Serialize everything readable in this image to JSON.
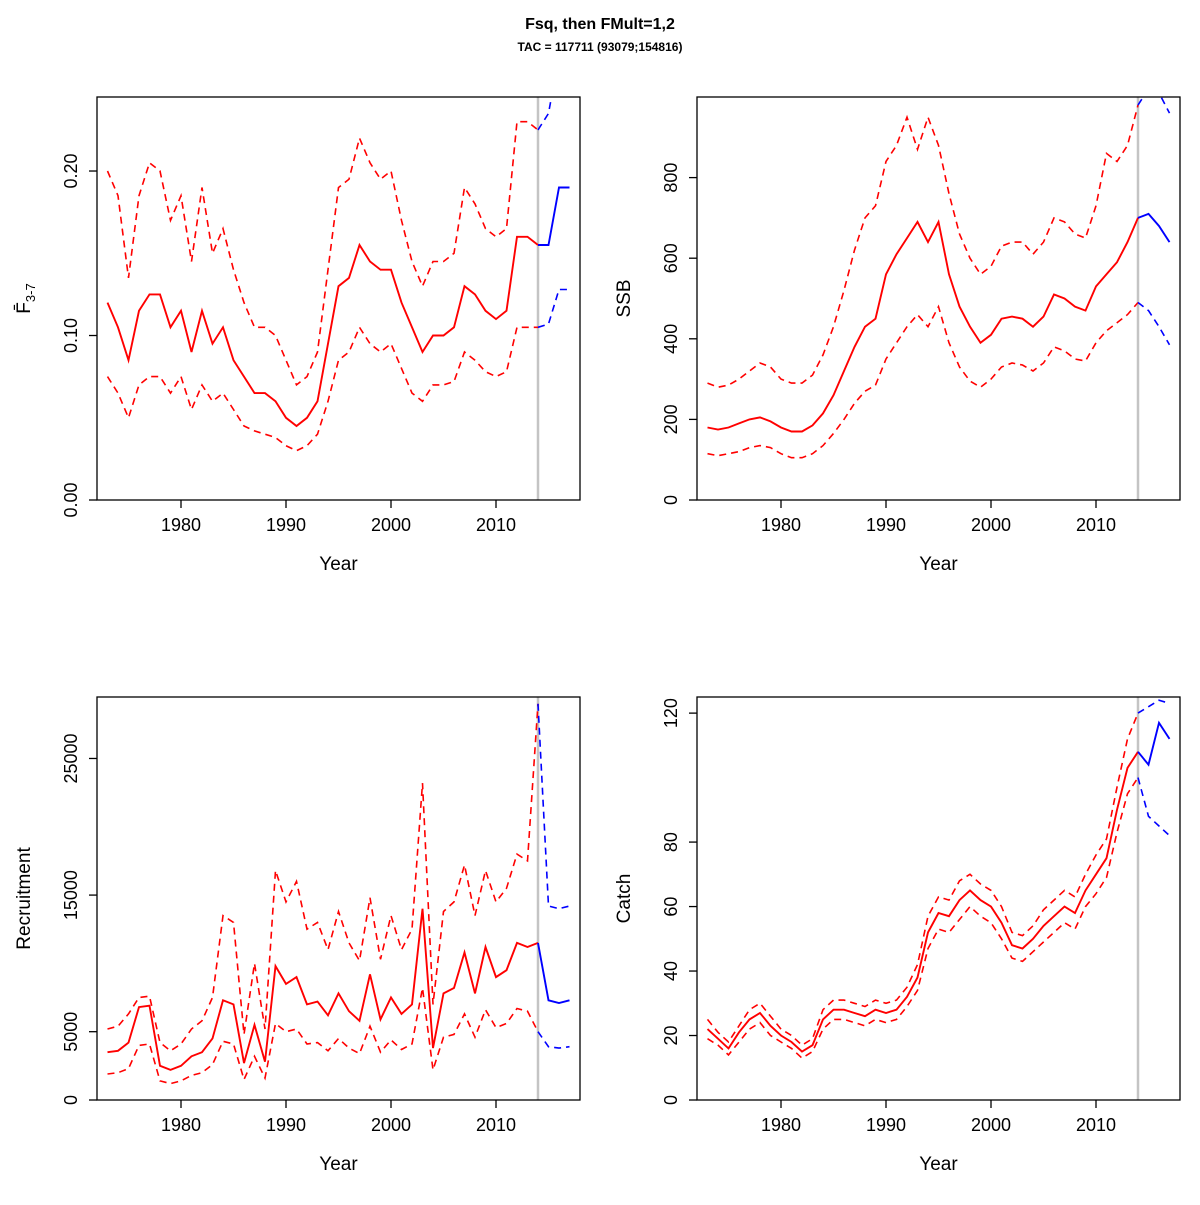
{
  "title": "Fsq, then FMult=1,2",
  "subtitle": "TAC = 117711 (93079;154816)",
  "colors": {
    "historical": "#ff0000",
    "forecast": "#0000ff",
    "forecast_divider": "#c4c4c4",
    "axis": "#000000"
  },
  "forecast_start_year": 2014,
  "years_hist": [
    1973,
    1974,
    1975,
    1976,
    1977,
    1978,
    1979,
    1980,
    1981,
    1982,
    1983,
    1984,
    1985,
    1986,
    1987,
    1988,
    1989,
    1990,
    1991,
    1992,
    1993,
    1994,
    1995,
    1996,
    1997,
    1998,
    1999,
    2000,
    2001,
    2002,
    2003,
    2004,
    2005,
    2006,
    2007,
    2008,
    2009,
    2010,
    2011,
    2012,
    2013,
    2014
  ],
  "years_forecast": [
    2014,
    2015,
    2016,
    2017
  ],
  "chart_data": [
    {
      "id": "fbar",
      "type": "line",
      "title": "",
      "xlabel": "Year",
      "ylabel": "F̄",
      "ylabel_sub": "3-7",
      "xlim": [
        1972,
        2018
      ],
      "ylim": [
        0,
        0.245
      ],
      "xticks": [
        1980,
        1990,
        2000,
        2010
      ],
      "yticks": [
        0,
        0.1,
        0.2
      ],
      "ytick_labels": [
        "0.00",
        "0.10",
        "0.20"
      ],
      "series": [
        {
          "name": "median-historical",
          "color": "red",
          "dash": false,
          "period": "hist",
          "y": [
            0.12,
            0.105,
            0.085,
            0.115,
            0.125,
            0.125,
            0.105,
            0.115,
            0.09,
            0.115,
            0.095,
            0.105,
            0.085,
            0.075,
            0.065,
            0.065,
            0.06,
            0.05,
            0.045,
            0.05,
            0.06,
            0.095,
            0.13,
            0.135,
            0.155,
            0.145,
            0.14,
            0.14,
            0.12,
            0.105,
            0.09,
            0.1,
            0.1,
            0.105,
            0.13,
            0.125,
            0.115,
            0.11,
            0.115,
            0.16,
            0.16,
            0.155
          ]
        },
        {
          "name": "upper-historical",
          "color": "red",
          "dash": true,
          "period": "hist",
          "y": [
            0.2,
            0.185,
            0.135,
            0.185,
            0.205,
            0.2,
            0.17,
            0.185,
            0.145,
            0.19,
            0.15,
            0.165,
            0.14,
            0.12,
            0.105,
            0.105,
            0.1,
            0.085,
            0.07,
            0.075,
            0.09,
            0.14,
            0.19,
            0.195,
            0.22,
            0.205,
            0.195,
            0.2,
            0.17,
            0.145,
            0.13,
            0.145,
            0.145,
            0.15,
            0.19,
            0.18,
            0.165,
            0.16,
            0.165,
            0.23,
            0.23,
            0.225
          ]
        },
        {
          "name": "lower-historical",
          "color": "red",
          "dash": true,
          "period": "hist",
          "y": [
            0.075,
            0.065,
            0.05,
            0.07,
            0.075,
            0.075,
            0.065,
            0.075,
            0.055,
            0.07,
            0.06,
            0.065,
            0.055,
            0.045,
            0.042,
            0.04,
            0.038,
            0.033,
            0.03,
            0.033,
            0.04,
            0.06,
            0.085,
            0.09,
            0.105,
            0.095,
            0.09,
            0.095,
            0.08,
            0.065,
            0.06,
            0.07,
            0.07,
            0.072,
            0.09,
            0.085,
            0.078,
            0.075,
            0.078,
            0.105,
            0.105,
            0.105
          ]
        },
        {
          "name": "median-forecast",
          "color": "blue",
          "dash": false,
          "period": "forecast",
          "y": [
            0.155,
            0.155,
            0.19,
            0.19
          ]
        },
        {
          "name": "upper-forecast",
          "color": "blue",
          "dash": true,
          "period": "forecast",
          "y": [
            0.225,
            0.235,
            0.27,
            0.27
          ]
        },
        {
          "name": "lower-forecast",
          "color": "blue",
          "dash": true,
          "period": "forecast",
          "y": [
            0.105,
            0.107,
            0.128,
            0.128
          ]
        }
      ]
    },
    {
      "id": "ssb",
      "type": "line",
      "title": "",
      "xlabel": "Year",
      "ylabel": "SSB",
      "xlim": [
        1972,
        2018
      ],
      "ylim": [
        0,
        1000
      ],
      "xticks": [
        1980,
        1990,
        2000,
        2010
      ],
      "yticks": [
        0,
        200,
        400,
        600,
        800
      ],
      "ytick_labels": [
        "0",
        "200",
        "400",
        "600",
        "800"
      ],
      "series": [
        {
          "name": "median-historical",
          "color": "red",
          "dash": false,
          "period": "hist",
          "y": [
            180,
            175,
            180,
            190,
            200,
            205,
            195,
            180,
            170,
            170,
            185,
            215,
            260,
            320,
            380,
            430,
            450,
            560,
            610,
            650,
            690,
            640,
            690,
            560,
            480,
            430,
            390,
            410,
            450,
            455,
            450,
            430,
            455,
            510,
            500,
            480,
            470,
            530,
            560,
            590,
            640,
            700
          ]
        },
        {
          "name": "upper-historical",
          "color": "red",
          "dash": true,
          "period": "hist",
          "y": [
            290,
            280,
            285,
            300,
            320,
            340,
            330,
            300,
            290,
            290,
            310,
            360,
            430,
            520,
            620,
            700,
            730,
            840,
            880,
            950,
            870,
            950,
            880,
            760,
            660,
            600,
            560,
            580,
            630,
            640,
            640,
            610,
            640,
            700,
            690,
            660,
            650,
            730,
            860,
            840,
            880,
            980
          ]
        },
        {
          "name": "lower-historical",
          "color": "red",
          "dash": true,
          "period": "hist",
          "y": [
            115,
            110,
            115,
            120,
            130,
            135,
            130,
            115,
            105,
            105,
            115,
            135,
            165,
            200,
            240,
            270,
            285,
            350,
            390,
            430,
            460,
            430,
            480,
            390,
            330,
            295,
            280,
            300,
            330,
            340,
            335,
            320,
            340,
            380,
            370,
            350,
            345,
            390,
            420,
            440,
            460,
            490
          ]
        },
        {
          "name": "median-forecast",
          "color": "blue",
          "dash": false,
          "period": "forecast",
          "y": [
            700,
            710,
            680,
            640
          ]
        },
        {
          "name": "upper-forecast",
          "color": "blue",
          "dash": true,
          "period": "forecast",
          "y": [
            980,
            1020,
            1010,
            960
          ]
        },
        {
          "name": "lower-forecast",
          "color": "blue",
          "dash": true,
          "period": "forecast",
          "y": [
            490,
            470,
            430,
            385
          ]
        }
      ]
    },
    {
      "id": "recruitment",
      "type": "line",
      "title": "",
      "xlabel": "Year",
      "ylabel": "Recruitment",
      "xlim": [
        1972,
        2018
      ],
      "ylim": [
        0,
        29500
      ],
      "xticks": [
        1980,
        1990,
        2000,
        2010
      ],
      "yticks": [
        0,
        5000,
        15000,
        25000
      ],
      "ytick_labels": [
        "0",
        "5000",
        "15000",
        "25000"
      ],
      "series": [
        {
          "name": "median-historical",
          "color": "red",
          "dash": false,
          "period": "hist",
          "y": [
            3500,
            3600,
            4200,
            6800,
            6900,
            2500,
            2200,
            2500,
            3200,
            3500,
            4500,
            7300,
            7000,
            2700,
            5500,
            2800,
            9800,
            8500,
            9000,
            7000,
            7200,
            6200,
            7800,
            6500,
            5800,
            9200,
            5900,
            7500,
            6300,
            7000,
            14000,
            3800,
            7800,
            8200,
            10800,
            7800,
            11200,
            9000,
            9500,
            11500,
            11200,
            11500
          ]
        },
        {
          "name": "upper-historical",
          "color": "red",
          "dash": true,
          "period": "hist",
          "y": [
            5200,
            5400,
            6300,
            7500,
            7600,
            4200,
            3600,
            4100,
            5200,
            5800,
            7500,
            13500,
            13000,
            4800,
            10000,
            5200,
            16800,
            14500,
            16000,
            12500,
            13000,
            11000,
            13800,
            11500,
            10200,
            14800,
            10300,
            13500,
            11000,
            12500,
            23200,
            7000,
            13800,
            14500,
            17200,
            13500,
            16800,
            14500,
            15500,
            18000,
            17500,
            29000
          ]
        },
        {
          "name": "lower-historical",
          "color": "red",
          "dash": true,
          "period": "hist",
          "y": [
            1900,
            2000,
            2300,
            4000,
            4100,
            1400,
            1200,
            1400,
            1800,
            2000,
            2600,
            4300,
            4100,
            1500,
            3200,
            1600,
            5600,
            5000,
            5200,
            4100,
            4200,
            3600,
            4500,
            3800,
            3400,
            5400,
            3500,
            4400,
            3700,
            4100,
            8200,
            2200,
            4600,
            4800,
            6300,
            4600,
            6600,
            5300,
            5600,
            6700,
            6500,
            5000
          ]
        },
        {
          "name": "median-forecast",
          "color": "blue",
          "dash": false,
          "period": "forecast",
          "y": [
            11500,
            7300,
            7100,
            7300
          ]
        },
        {
          "name": "upper-forecast",
          "color": "blue",
          "dash": true,
          "period": "forecast",
          "y": [
            29000,
            14200,
            14000,
            14200
          ]
        },
        {
          "name": "lower-forecast",
          "color": "blue",
          "dash": true,
          "period": "forecast",
          "y": [
            5000,
            3900,
            3800,
            3900
          ]
        }
      ]
    },
    {
      "id": "catch",
      "type": "line",
      "title": "",
      "xlabel": "Year",
      "ylabel": "Catch",
      "xlim": [
        1972,
        2018
      ],
      "ylim": [
        0,
        125
      ],
      "xticks": [
        1980,
        1990,
        2000,
        2010
      ],
      "yticks": [
        0,
        20,
        40,
        60,
        80,
        120
      ],
      "ytick_labels": [
        "0",
        "20",
        "40",
        "60",
        "80",
        "120"
      ],
      "series": [
        {
          "name": "median-historical",
          "color": "red",
          "dash": false,
          "period": "hist",
          "y": [
            22,
            19,
            16,
            21,
            25,
            27,
            23,
            20,
            18,
            15,
            17,
            25,
            28,
            28,
            27,
            26,
            28,
            27,
            28,
            32,
            38,
            52,
            58,
            57,
            62,
            65,
            62,
            60,
            55,
            48,
            47,
            50,
            54,
            57,
            60,
            58,
            65,
            70,
            75,
            90,
            103,
            108
          ]
        },
        {
          "name": "upper-historical",
          "color": "red",
          "dash": true,
          "period": "hist",
          "y": [
            25,
            21,
            18,
            23,
            28,
            30,
            26,
            22,
            20,
            17,
            19,
            28,
            31,
            31,
            30,
            29,
            31,
            30,
            31,
            35,
            42,
            57,
            63,
            62,
            68,
            70,
            67,
            65,
            60,
            52,
            51,
            54,
            59,
            62,
            65,
            63,
            70,
            76,
            81,
            97,
            112,
            120
          ]
        },
        {
          "name": "lower-historical",
          "color": "red",
          "dash": true,
          "period": "hist",
          "y": [
            19,
            17,
            14,
            18,
            22,
            24,
            20,
            18,
            16,
            13,
            15,
            22,
            25,
            25,
            24,
            23,
            25,
            24,
            25,
            29,
            34,
            47,
            53,
            52,
            56,
            60,
            57,
            55,
            50,
            44,
            43,
            46,
            49,
            52,
            55,
            53,
            60,
            64,
            69,
            83,
            95,
            100
          ]
        },
        {
          "name": "median-forecast",
          "color": "blue",
          "dash": false,
          "period": "forecast",
          "y": [
            108,
            104,
            117,
            112
          ]
        },
        {
          "name": "upper-forecast",
          "color": "blue",
          "dash": true,
          "period": "forecast",
          "y": [
            120,
            122,
            124,
            123
          ]
        },
        {
          "name": "lower-forecast",
          "color": "blue",
          "dash": true,
          "period": "forecast",
          "y": [
            100,
            88,
            85,
            82
          ]
        }
      ]
    }
  ]
}
